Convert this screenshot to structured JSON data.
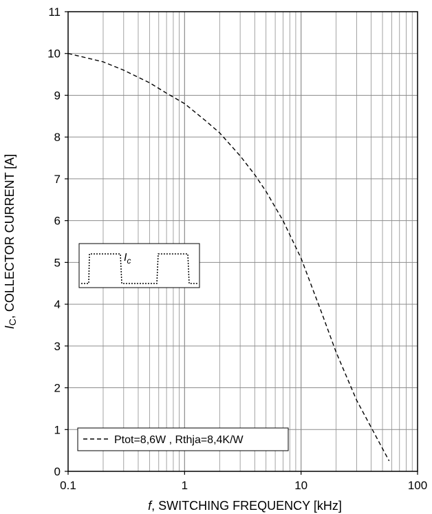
{
  "chart_data": {
    "type": "line",
    "x_scale": "log",
    "xlim": [
      0.1,
      100
    ],
    "ylim": [
      0,
      11
    ],
    "x_ticks": [
      0.1,
      1,
      10,
      100
    ],
    "x_tick_labels": [
      "0.1",
      "1",
      "10",
      "100"
    ],
    "y_ticks": [
      0,
      1,
      2,
      3,
      4,
      5,
      6,
      7,
      8,
      9,
      10,
      11
    ],
    "y_tick_labels": [
      "0",
      "1",
      "2",
      "3",
      "4",
      "5",
      "6",
      "7",
      "8",
      "9",
      "10",
      "11"
    ],
    "xlabel_prefix": "f",
    "xlabel_rest": ", SWITCHING FREQUENCY [kHz]",
    "ylabel_prefix": "I",
    "ylabel_sub": "C",
    "ylabel_rest": ", COLLECTOR CURRENT [A]",
    "grid": "major and minor",
    "inset_label_main": "I",
    "inset_label_sub": "c",
    "series": [
      {
        "name": "Ptot=8,6W , Rthja=8,4K/W",
        "style": "dashed",
        "color": "#000000",
        "x": [
          0.1,
          0.2,
          0.3,
          0.5,
          0.7,
          1,
          1.5,
          2,
          3,
          4,
          5,
          7,
          10,
          15,
          20,
          30,
          40,
          57
        ],
        "y": [
          10.0,
          9.8,
          9.6,
          9.3,
          9.05,
          8.8,
          8.4,
          8.1,
          7.55,
          7.1,
          6.7,
          6.0,
          5.1,
          3.8,
          2.85,
          1.7,
          1.05,
          0.25
        ]
      }
    ],
    "legend_position": "bottom-left"
  }
}
